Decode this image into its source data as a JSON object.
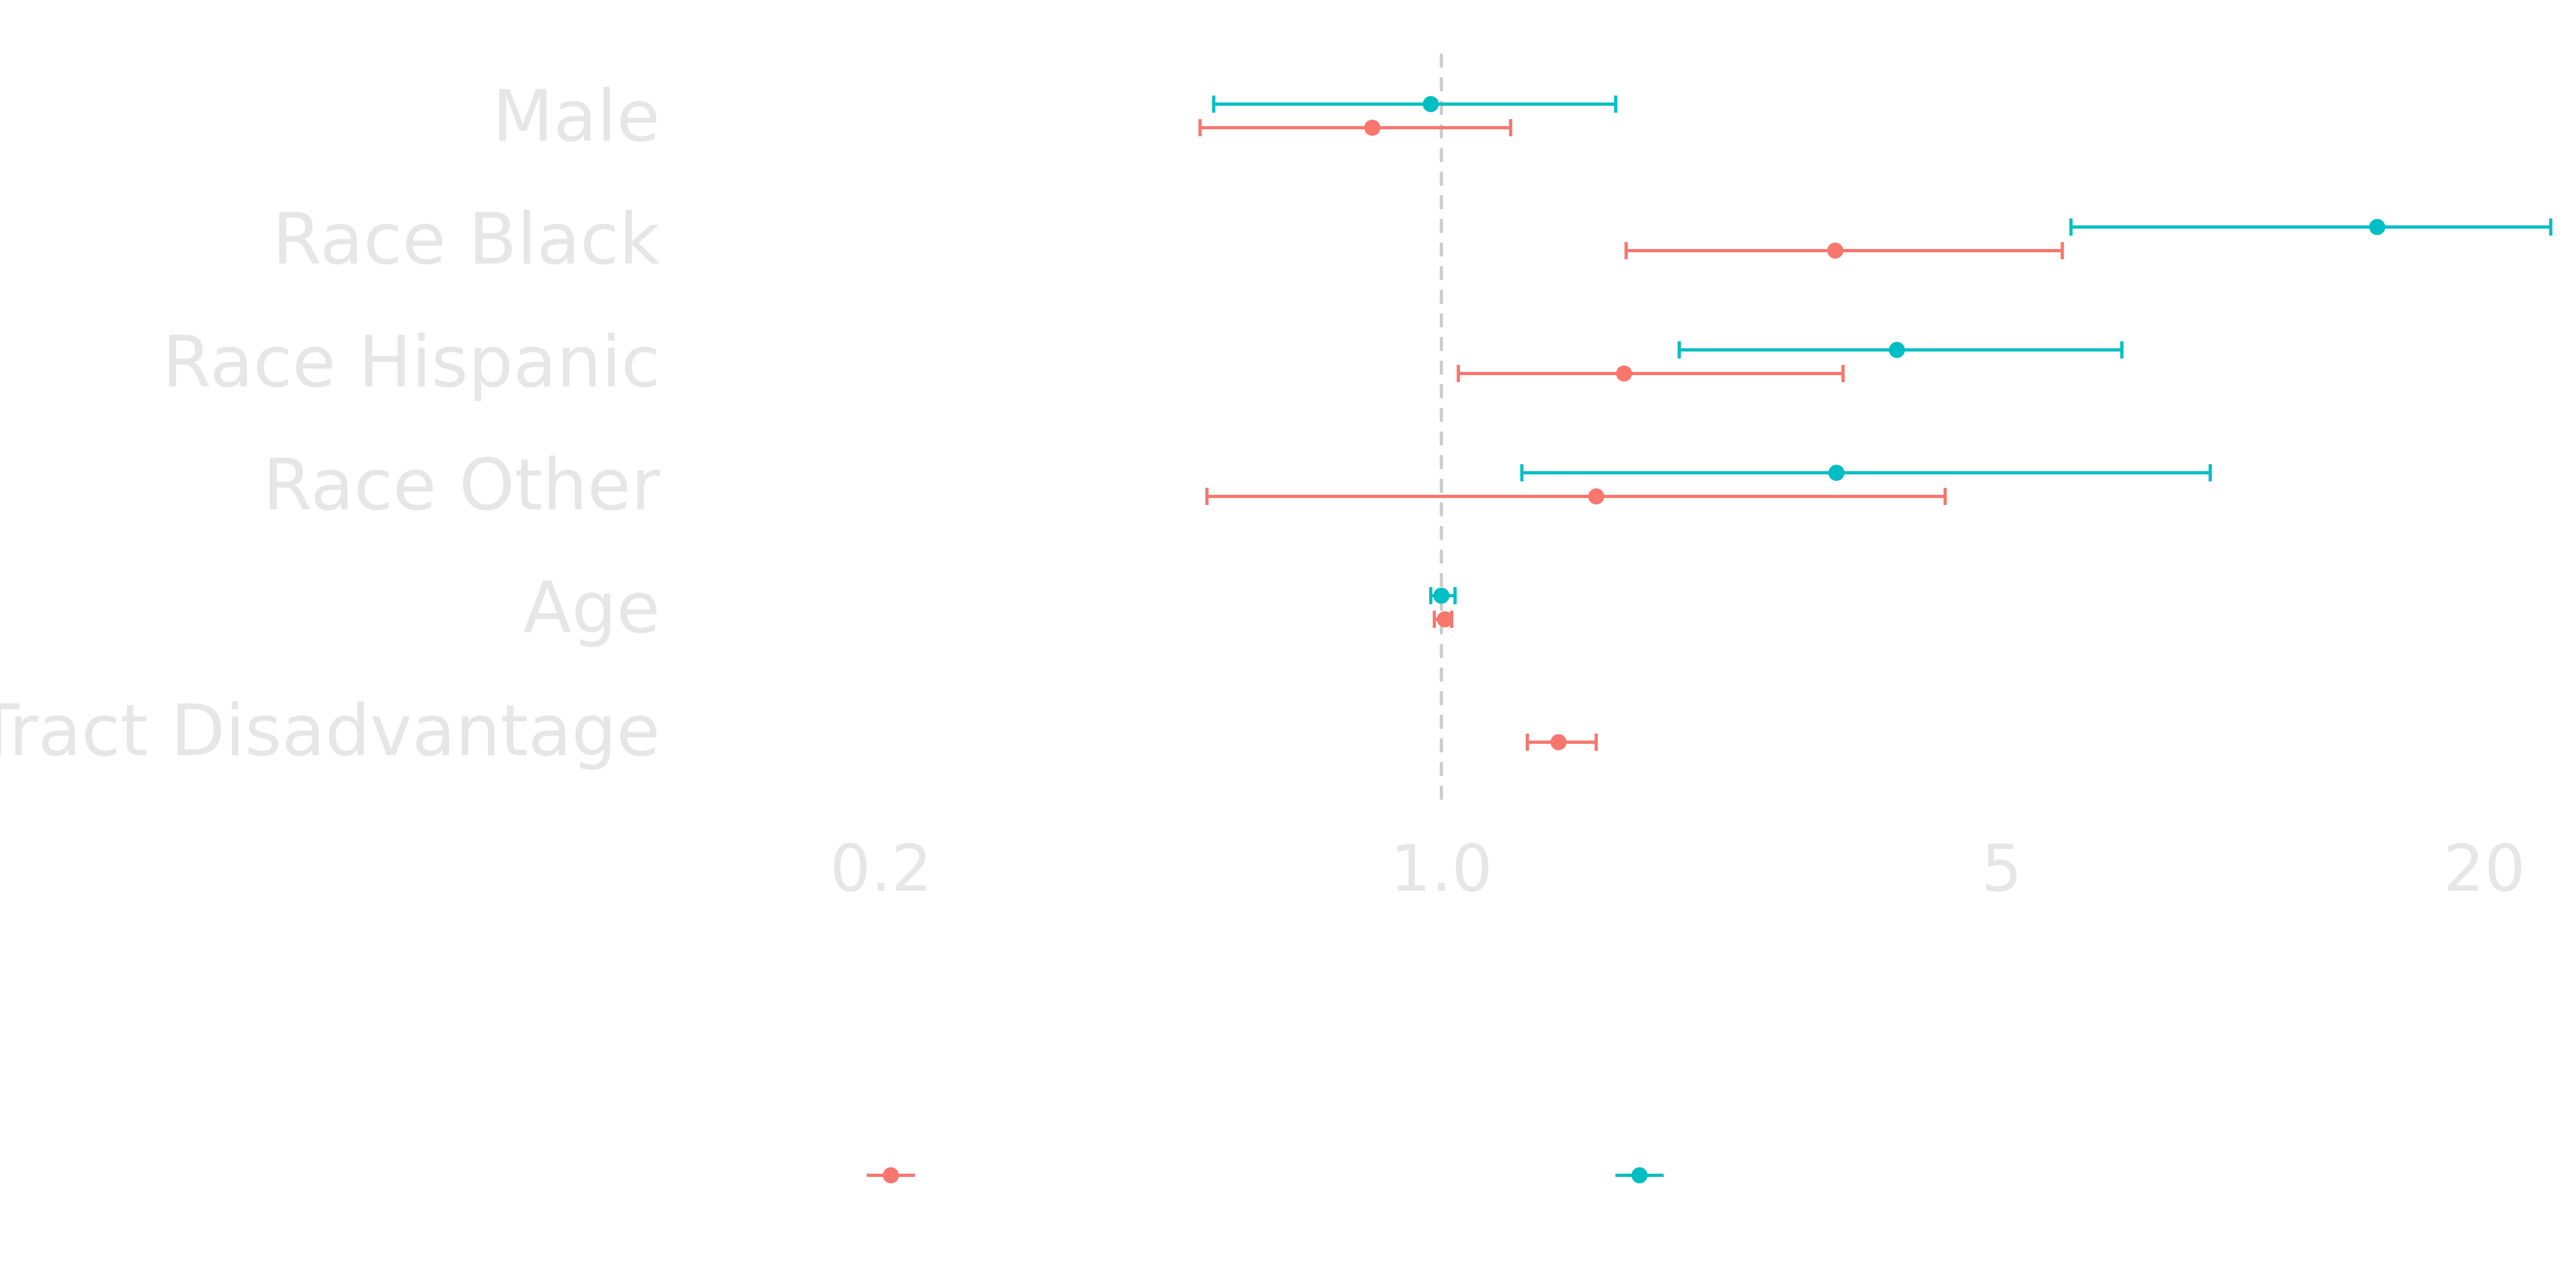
{
  "chart_data": {
    "type": "scatter",
    "title": "",
    "xlabel": "",
    "ylabel": "",
    "x_scale": "log",
    "xlim": [
      0.15,
      23
    ],
    "reference_line": 1.0,
    "grid": false,
    "legend": "bottom",
    "categories": [
      "Male",
      "Race Black",
      "Race Hispanic",
      "Race Other",
      "Age",
      "Tract Disadvantage"
    ],
    "x_ticks": [
      0.2,
      1.0,
      5,
      20
    ],
    "x_tick_labels": [
      "0.2",
      "1.0",
      "5",
      "20"
    ],
    "series": [
      {
        "color": "#F8766D",
        "estimate": [
          0.82,
          3.1,
          1.69,
          1.56,
          1.01,
          1.4
        ],
        "lower": [
          0.5,
          1.7,
          1.05,
          0.51,
          0.98,
          1.28
        ],
        "upper": [
          1.22,
          5.95,
          3.17,
          4.25,
          1.03,
          1.56
        ]
      },
      {
        "color": "#00BFC4",
        "estimate": [
          0.97,
          14.7,
          3.7,
          3.11,
          1.0,
          null
        ],
        "lower": [
          0.52,
          6.1,
          1.98,
          1.26,
          0.97,
          null
        ],
        "upper": [
          1.65,
          24.2,
          7.06,
          9.1,
          1.04,
          null
        ]
      }
    ]
  }
}
